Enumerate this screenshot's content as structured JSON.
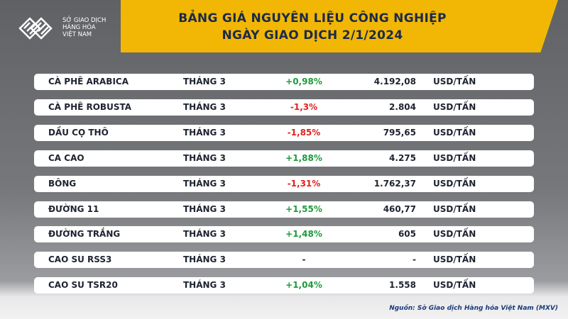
{
  "header": {
    "logo_lines": [
      "SỞ GIAO DỊCH",
      "HÀNG HÓA",
      "VIỆT NAM"
    ],
    "title": "BẢNG GIÁ NGUYÊN LIỆU CÔNG NGHIỆP",
    "subtitle": "NGÀY GIAO DỊCH 2/1/2024"
  },
  "change_colors": {
    "up": "#1f9a3c",
    "down": "#e0221f",
    "flat": "#222222"
  },
  "table": {
    "rows": [
      [
        "CÀ PHÊ ARABICA",
        "THÁNG 3",
        "+0,98%",
        "4.192,08",
        "USD/TẤN"
      ],
      [
        "CÀ PHÊ ROBUSTA",
        "THÁNG 3",
        "-1,3%",
        "2.804",
        "USD/TẤN"
      ],
      [
        "DẦU CỌ THÔ",
        "THÁNG 3",
        "-1,85%",
        "795,65",
        "USD/TẤN"
      ],
      [
        "CA CAO",
        "THÁNG 3",
        "+1,88%",
        "4.275",
        "USD/TẤN"
      ],
      [
        "BÔNG",
        "THÁNG 3",
        "-1,31%",
        "1.762,37",
        "USD/TẤN"
      ],
      [
        "ĐƯỜNG 11",
        "THÁNG 3",
        "+1,55%",
        "460,77",
        "USD/TẤN"
      ],
      [
        "ĐƯỜNG TRẮNG",
        "THÁNG 3",
        "+1,48%",
        "605",
        "USD/TẤN"
      ],
      [
        "CAO SU RSS3",
        "THÁNG 3",
        "-",
        "-",
        "USD/TẤN"
      ],
      [
        "CAO SU TSR20",
        "THÁNG 3",
        "+1,04%",
        "1.558",
        "USD/TẤN"
      ]
    ]
  },
  "footer": {
    "source": "Nguồn: Sở Giao dịch Hàng hóa Việt Nam (MXV)"
  }
}
